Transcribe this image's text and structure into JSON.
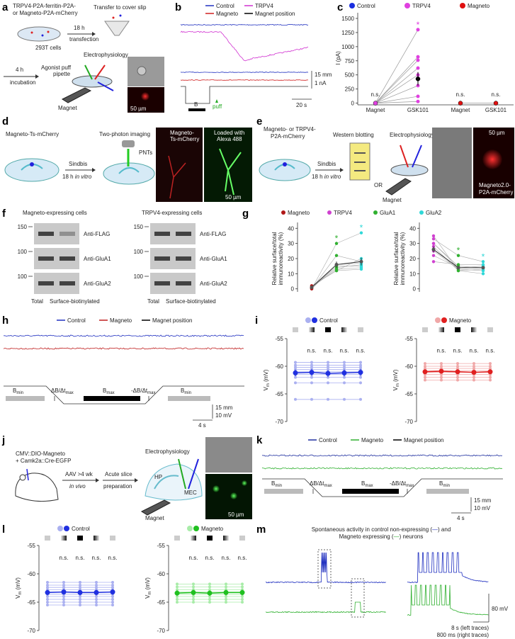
{
  "a": {
    "label": "a",
    "construct": [
      "TRPV4-P2A-ferritin-P2A-",
      "or Magneto-P2A-mCherry"
    ],
    "transfer": "Transfer to cover slip",
    "time1": "18 h",
    "transfection": "transfection",
    "cells": "293T cells",
    "time2": "4 h",
    "incubation": "incubation",
    "ephys": "Electrophysiology",
    "pipette": [
      "Agonist puff",
      "pipette"
    ],
    "magnet": "Magnet",
    "scale": "50 µm"
  },
  "b": {
    "label": "b",
    "legend": [
      {
        "name": "Control",
        "color": "#2030c0"
      },
      {
        "name": "TRPV4",
        "color": "#d030d0"
      },
      {
        "name": "Magneto",
        "color": "#d02020"
      },
      {
        "name": "Magnet position",
        "color": "#000000"
      }
    ],
    "scale": [
      "15 mm",
      "1 nA"
    ],
    "time": "20 s",
    "field": "B",
    "puff": "puff"
  },
  "c": {
    "label": "c",
    "legend": [
      {
        "name": "Control",
        "color": "#1a2ee0"
      },
      {
        "name": "TRPV4",
        "color": "#e040e0"
      },
      {
        "name": "Magneto",
        "color": "#e01010"
      }
    ],
    "ylabel": "I (pA)",
    "ylim": [
      -30,
      1550
    ],
    "yticks": [
      0,
      250,
      500,
      750,
      1000,
      1250,
      1500
    ],
    "categories": [
      "Magnet",
      "GSK101",
      "Magnet",
      "GSK101"
    ],
    "colors": [
      "#e040e0",
      "#e040e0",
      "#e01010",
      "#e01010"
    ],
    "means": [
      0,
      430,
      0,
      0
    ],
    "errors": [
      5,
      120,
      5,
      5
    ],
    "points": [
      1300,
      820,
      760,
      620,
      500,
      310,
      120,
      30
    ],
    "ns": [
      "n.s.",
      "n.s.",
      "n.s."
    ],
    "star": "*"
  },
  "d": {
    "label": "d",
    "construct": "Magneto-Ts-mCherry",
    "sindbis": "Sindbis",
    "time": [
      "18 h ",
      "in vitro"
    ],
    "imaging": "Two-photon imaging",
    "pnts": "PNTs",
    "img1": [
      "Magneto-",
      "Ts-mCherry"
    ],
    "img2": [
      "Loaded with",
      "Alexa 488"
    ],
    "scale": "50 µm"
  },
  "e": {
    "label": "e",
    "construct": [
      "Magneto- or TRPV4-",
      "P2A-mCherry"
    ],
    "sindbis": "Sindbis",
    "time": [
      "18 h ",
      "in vitro"
    ],
    "western": "Western blotting",
    "ephys": "Electrophysiology",
    "or": "OR",
    "magnet": "Magnet",
    "scale": "50 µm",
    "img": [
      "Magneto2.0-",
      "P2A-mCherry"
    ]
  },
  "f": {
    "label": "f",
    "titles": [
      "Magneto-expressing cells",
      "TRPV4-expressing cells"
    ],
    "antibodies": [
      "Anti-FLAG",
      "Anti-GluA1",
      "Anti-GluA2"
    ],
    "markers": [
      150,
      100,
      100
    ],
    "lanes": [
      "Total",
      "Surface-biotinylated"
    ]
  },
  "g": {
    "label": "g",
    "legend": [
      {
        "name": "Magneto",
        "color": "#b01818"
      },
      {
        "name": "TRPV4",
        "color": "#d040d0"
      },
      {
        "name": "GluA1",
        "color": "#30b030"
      },
      {
        "name": "GluA2",
        "color": "#30d8d8"
      }
    ],
    "ylabel": [
      "Relative surface/total",
      "immunoreactivity (%)"
    ],
    "ylim": [
      -2,
      42
    ],
    "yticks": [
      0,
      10,
      20,
      30,
      40
    ],
    "star": "*",
    "plots": [
      {
        "colors": [
          "#b01818",
          "#30b030",
          "#30d8d8"
        ],
        "points": [
          [
            0,
            1,
            2,
            1,
            0,
            2,
            1,
            0
          ],
          [
            30,
            14,
            12,
            13,
            22,
            12,
            15,
            16
          ],
          [
            37,
            16,
            13,
            14,
            18,
            20,
            15,
            17
          ]
        ],
        "means": [
          1,
          16,
          18
        ],
        "errors": [
          0.5,
          2,
          2.5
        ]
      },
      {
        "colors": [
          "#d040d0",
          "#30b030",
          "#30d8d8"
        ],
        "points": [
          [
            33,
            30,
            28,
            25,
            22,
            18,
            30,
            35
          ],
          [
            22,
            15,
            12,
            13,
            14,
            16,
            14,
            12
          ],
          [
            18,
            14,
            10,
            12,
            15,
            16,
            14,
            13
          ]
        ],
        "means": [
          26,
          14,
          14
        ],
        "errors": [
          2,
          1.2,
          1
        ]
      }
    ]
  },
  "h": {
    "label": "h",
    "legend": [
      {
        "name": "Control",
        "color": "#2030c0"
      },
      {
        "name": "Magneto",
        "color": "#c02020"
      },
      {
        "name": "Magnet position",
        "color": "#000000"
      }
    ],
    "bmin": [
      "B",
      "min"
    ],
    "dbdt": [
      "ΔB/Δt",
      "max"
    ],
    "bmax": [
      "B",
      "max"
    ],
    "ndbdt": [
      "-ΔB/Δt",
      "max"
    ],
    "scale": [
      "15 mm",
      "10 mV"
    ],
    "time": "4 s"
  },
  "i": {
    "label": "i",
    "legend": [
      "Control",
      "Magneto"
    ],
    "ylabel": [
      "V",
      "m",
      " (mV)"
    ],
    "ylim": [
      -70,
      -55
    ],
    "yticks": [
      -55,
      -60,
      -65,
      -70
    ],
    "ns": "n.s.",
    "plots": [
      {
        "colors": [
          "#aab0f0",
          "#2030e0"
        ],
        "cells": [
          -59.3,
          -59.8,
          -60.2,
          -60.6,
          -61,
          -61.5,
          -62,
          -63,
          -66
        ],
        "means": [
          -61.2,
          -61.1,
          -61.3,
          -61.2,
          -61.1
        ],
        "errors": [
          0.6,
          0.6,
          0.6,
          0.6,
          0.6
        ]
      },
      {
        "colors": [
          "#f0a8a8",
          "#e02020"
        ],
        "cells": [
          -59.5,
          -60,
          -60.4,
          -60.8,
          -61.1,
          -61.5,
          -62,
          -62.5
        ],
        "means": [
          -61,
          -60.9,
          -61,
          -61.1,
          -61
        ],
        "errors": [
          0.4,
          0.4,
          0.4,
          0.4,
          0.4
        ]
      }
    ]
  },
  "j": {
    "label": "j",
    "construct": [
      "CMV::DIO-Magneto",
      "+ Camk2a::Cre-EGFP"
    ],
    "aav": "AAV >4 wk",
    "invivo": "in vivo",
    "acute": [
      "Acute slice",
      "preparation"
    ],
    "ephys": "Electrophysiology",
    "hp": "HP",
    "mec": "MEC",
    "magnet": "Magnet",
    "scale": "50 µm"
  },
  "k": {
    "label": "k",
    "legend": [
      {
        "name": "Control",
        "color": "#2030a0"
      },
      {
        "name": "Magneto",
        "color": "#30b030"
      },
      {
        "name": "Magnet position",
        "color": "#000000"
      }
    ],
    "bmin": [
      "B",
      "min"
    ],
    "dbdt": [
      "ΔB/Δt",
      "max"
    ],
    "bmax": [
      "B",
      "max"
    ],
    "ndbdt": [
      "-ΔB/Δt",
      "max"
    ],
    "scale": [
      "15 mm",
      "10 mV"
    ],
    "time": "4 s"
  },
  "l": {
    "label": "l",
    "legend": [
      "Control",
      "Magneto"
    ],
    "ylabel": [
      "V",
      "m",
      " (mV)"
    ],
    "ylim": [
      -70,
      -55
    ],
    "yticks": [
      -55,
      -60,
      -65,
      -70
    ],
    "ns": "n.s.",
    "plots": [
      {
        "colors": [
          "#aab0f0",
          "#2030e0"
        ],
        "cells": [
          -61.5,
          -62,
          -62.4,
          -62.8,
          -63.2,
          -63.6,
          -64,
          -64.5,
          -65,
          -65.5
        ],
        "means": [
          -63.3,
          -63.2,
          -63.3,
          -63.3,
          -63.2
        ],
        "errors": [
          0.5,
          0.5,
          0.5,
          0.5,
          0.5
        ]
      },
      {
        "colors": [
          "#a8eca8",
          "#20c020"
        ],
        "cells": [
          -61.8,
          -62.3,
          -62.8,
          -63.2,
          -63.6,
          -64,
          -64.5,
          -65
        ],
        "means": [
          -63.4,
          -63.3,
          -63.4,
          -63.3,
          -63.3
        ],
        "errors": [
          0.5,
          0.5,
          0.5,
          0.5,
          0.5
        ]
      }
    ]
  },
  "m": {
    "label": "m",
    "title": [
      [
        "Spontaneous activity in control non-expressing (",
        "—",
        ") and"
      ],
      [
        "Magneto expressing (",
        "—",
        ") neurons"
      ]
    ],
    "scale": "80 mV",
    "time": [
      "8 s (left traces)",
      "800 ms (right traces)"
    ]
  }
}
